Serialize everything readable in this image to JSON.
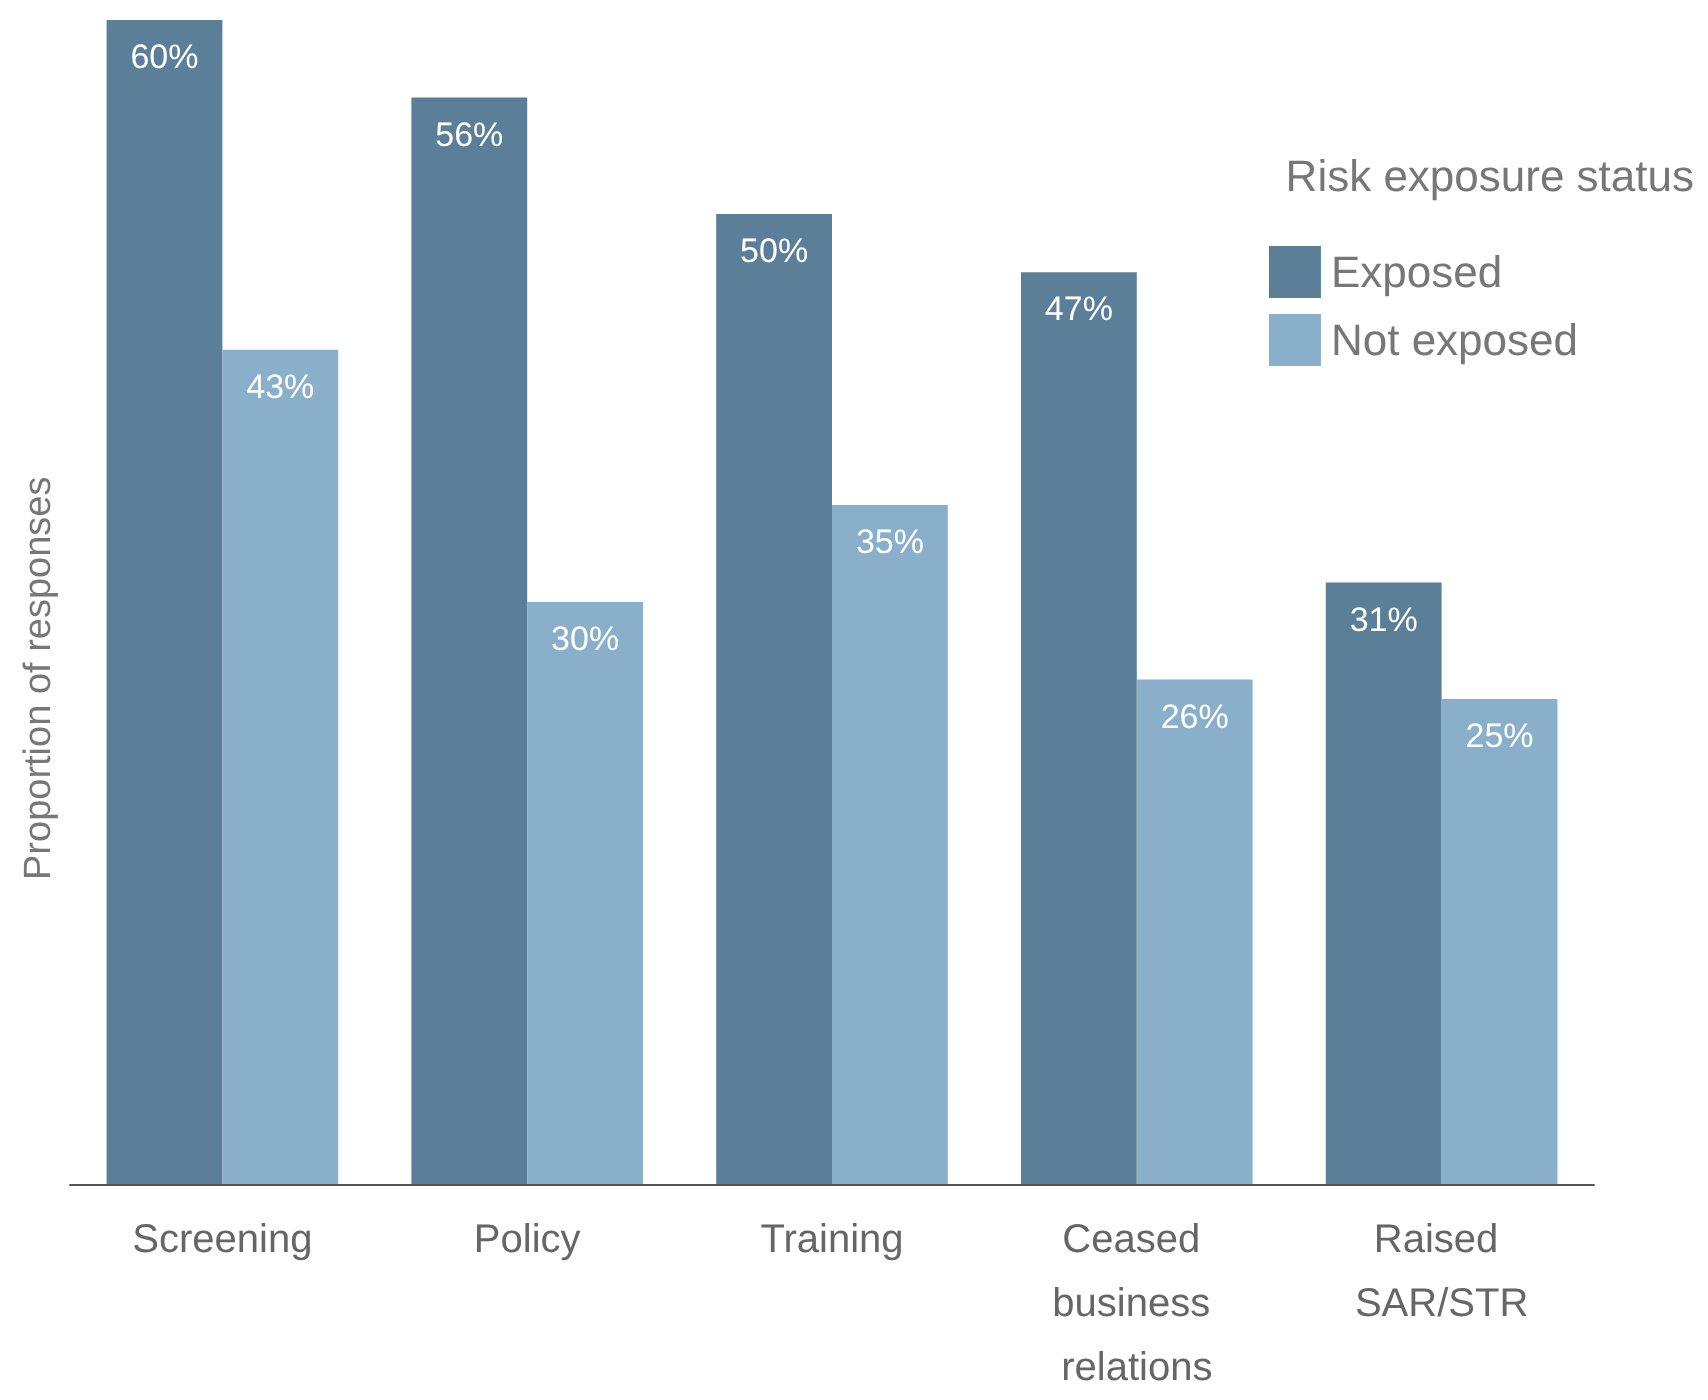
{
  "chart_data": {
    "type": "bar",
    "ylabel": "Proportion of responses",
    "legend_title": "Risk exposure status",
    "legend": "top right",
    "categories": [
      "Screening",
      "Policy",
      "Training",
      "Ceased business relations",
      "Raised SAR/STR"
    ],
    "series": [
      {
        "name": "Exposed",
        "color": "#5b7f99",
        "values": [
          60,
          56,
          50,
          47,
          31
        ],
        "value_labels": [
          "60%",
          "56%",
          "50%",
          "47%",
          "31%"
        ]
      },
      {
        "name": "Not exposed",
        "color": "#8aafca",
        "values": [
          43,
          30,
          35,
          26,
          25
        ],
        "value_labels": [
          "43%",
          "30%",
          "35%",
          "26%",
          "25%"
        ]
      }
    ]
  }
}
